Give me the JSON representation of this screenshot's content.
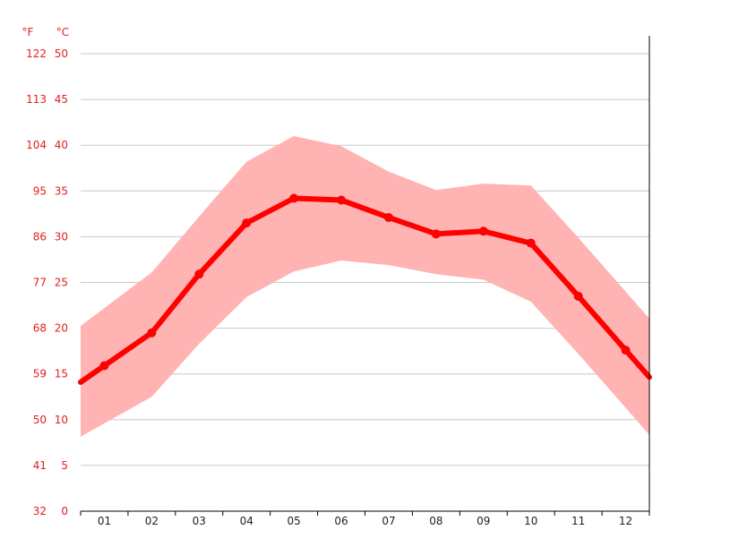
{
  "chart_data": {
    "type": "line",
    "units": {
      "fahrenheit": "°F",
      "celsius": "°C"
    },
    "categories": [
      "01",
      "02",
      "03",
      "04",
      "05",
      "06",
      "07",
      "08",
      "09",
      "10",
      "11",
      "12"
    ],
    "y_ticks_c": [
      0,
      5,
      10,
      15,
      20,
      25,
      30,
      35,
      40,
      45,
      50
    ],
    "y_ticks_f": [
      32,
      41,
      50,
      59,
      68,
      77,
      86,
      95,
      104,
      113,
      122
    ],
    "ylim": [
      0,
      50
    ],
    "grid": true,
    "series": [
      {
        "role": "mean",
        "values": [
          15.9,
          19.5,
          25.9,
          31.5,
          34.2,
          34.0,
          32.1,
          30.3,
          30.6,
          29.3,
          23.5,
          17.6
        ]
      },
      {
        "role": "band_max",
        "values": [
          22.2,
          26.1,
          32.2,
          38.2,
          41.0,
          39.9,
          37.1,
          35.1,
          35.8,
          35.6,
          29.9,
          24.0
        ]
      },
      {
        "role": "band_min",
        "values": [
          9.6,
          12.5,
          18.3,
          23.4,
          26.2,
          27.4,
          26.9,
          25.9,
          25.3,
          22.9,
          17.2,
          11.3
        ]
      }
    ],
    "colors": {
      "line": "#ff0000",
      "band": "#ffb3b3",
      "label": "#e0201f",
      "grid": "#c8c8c8",
      "axis": "#000000"
    }
  }
}
